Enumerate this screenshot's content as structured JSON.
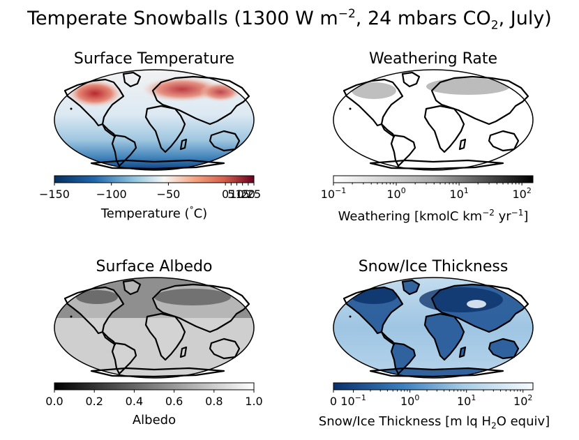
{
  "figure": {
    "title_main": "Temperate Snowballs (1300 W m",
    "title_exp": "−2",
    "title_mid": ", 24 mbars CO",
    "title_sub": "2",
    "title_end": ", July)"
  },
  "panels": {
    "temperature": {
      "title": "Surface Temperature",
      "cb_label": "Temperature (",
      "cb_label_deg": "°",
      "cb_label_end": "C)",
      "ticks": [
        "−150",
        "−100",
        "−50",
        "0",
        "5",
        "10",
        "15",
        "20",
        "25"
      ],
      "colors": {
        "cold": "#08306b",
        "neutral": "#f7f7f7",
        "warm": "#67001f"
      }
    },
    "weathering": {
      "title": "Weathering Rate",
      "cb_label_a": "Weathering [kmolC km",
      "cb_label_exp1": "−2",
      "cb_label_b": " yr",
      "cb_label_exp2": "−1",
      "cb_label_c": "]",
      "ticks": [
        {
          "base": "10",
          "exp": "−1"
        },
        {
          "base": "10",
          "exp": "0"
        },
        {
          "base": "10",
          "exp": "1"
        },
        {
          "base": "10",
          "exp": "2"
        }
      ],
      "colors": {
        "low": "#ffffff",
        "high": "#000000"
      }
    },
    "albedo": {
      "title": "Surface Albedo",
      "cb_label": "Albedo",
      "ticks": [
        "0.0",
        "0.2",
        "0.4",
        "0.6",
        "0.8",
        "1.0"
      ],
      "colors": {
        "low": "#000000",
        "high": "#ffffff",
        "ocean": "#cfcfcf"
      }
    },
    "thickness": {
      "title": "Snow/Ice Thickness",
      "cb_label_a": "Snow/Ice Thickness [m lq H",
      "cb_label_sub": "2",
      "cb_label_b": "O equiv]",
      "ticks": [
        {
          "base": "0",
          "exp": ""
        },
        {
          "base": "10",
          "exp": "−1"
        },
        {
          "base": "10",
          "exp": "0"
        },
        {
          "base": "10",
          "exp": "1"
        },
        {
          "base": "10",
          "exp": "2"
        }
      ],
      "colors": {
        "thick": "#08306b",
        "thin": "#f7fbff",
        "ocean": "#a8cbe6"
      }
    }
  },
  "chart_data": [
    {
      "type": "heatmap",
      "title": "Surface Temperature",
      "colorbar_label": "Temperature (°C)",
      "colorbar_ticks": [
        -150,
        -100,
        -50,
        0,
        5,
        10,
        15,
        20,
        25
      ],
      "range": [
        -150,
        25
      ]
    },
    {
      "type": "heatmap",
      "title": "Weathering Rate",
      "colorbar_label": "Weathering [kmolC km−2 yr−1]",
      "colorbar_scale": "log",
      "colorbar_ticks": [
        0.1,
        1,
        10,
        100
      ],
      "range": [
        0.1,
        150
      ]
    },
    {
      "type": "heatmap",
      "title": "Surface Albedo",
      "colorbar_label": "Albedo",
      "colorbar_ticks": [
        0.0,
        0.2,
        0.4,
        0.6,
        0.8,
        1.0
      ],
      "range": [
        0.0,
        1.0
      ]
    },
    {
      "type": "heatmap",
      "title": "Snow/Ice Thickness",
      "colorbar_label": "Snow/Ice Thickness [m lq H2O equiv]",
      "colorbar_scale": "symlog",
      "colorbar_ticks": [
        0,
        0.1,
        1,
        10,
        100
      ],
      "range": [
        0,
        150
      ]
    }
  ]
}
